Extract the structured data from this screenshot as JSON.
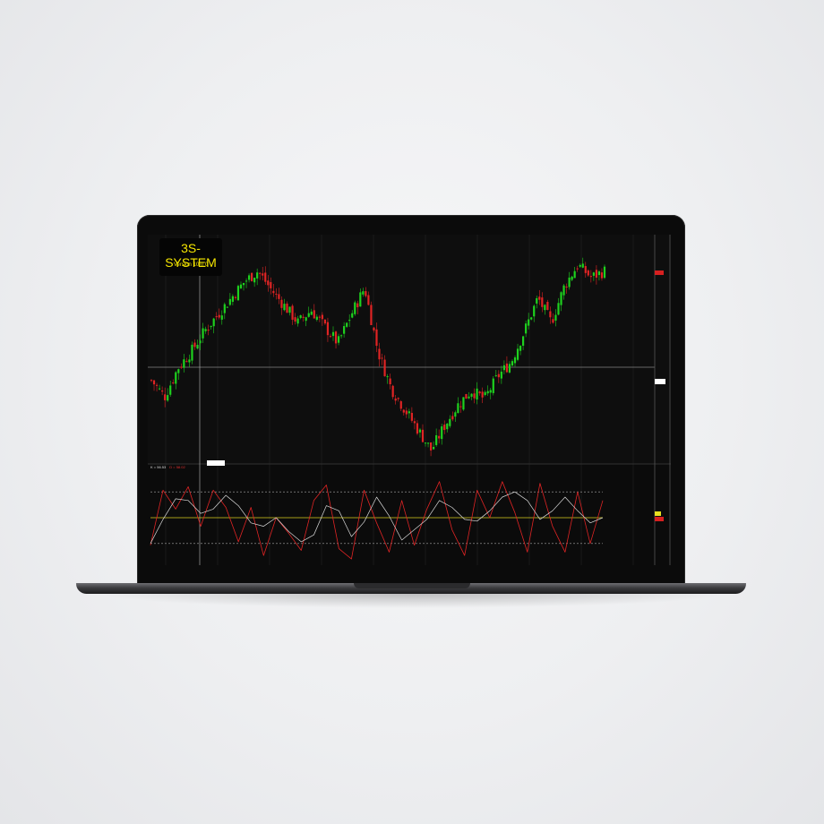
{
  "app": {
    "title": "3S-SYSTEM",
    "version": "Version 10.0.0"
  },
  "colors": {
    "up": "#1ed11e",
    "down": "#e02424",
    "k_line": "#d9d9d9",
    "d_line": "#e02424",
    "mid_line": "#d8d020",
    "band_line": "#aaaaaa"
  },
  "chart_data": [
    {
      "type": "candlestick",
      "title": "",
      "xlabel": "",
      "ylabel": "",
      "grid": true,
      "close_path": [
        0.38,
        0.3,
        0.44,
        0.52,
        0.62,
        0.7,
        0.78,
        0.86,
        0.91,
        0.82,
        0.74,
        0.66,
        0.72,
        0.64,
        0.56,
        0.7,
        0.83,
        0.52,
        0.34,
        0.24,
        0.14,
        0.04,
        0.16,
        0.26,
        0.33,
        0.29,
        0.4,
        0.47,
        0.62,
        0.78,
        0.66,
        0.84,
        0.94,
        0.88,
        0.91
      ]
    },
    {
      "type": "line",
      "series_labels": {
        "k": "K = 56.53",
        "d": "D = 58.02"
      },
      "bands": [
        80,
        50,
        20
      ],
      "series": [
        {
          "name": "K",
          "values": [
            20,
            48,
            72,
            70,
            55,
            60,
            76,
            64,
            44,
            40,
            50,
            34,
            22,
            30,
            64,
            58,
            28,
            45,
            74,
            52,
            24,
            36,
            48,
            70,
            62,
            48,
            46,
            58,
            74,
            80,
            70,
            48,
            58,
            74,
            58,
            44,
            50
          ]
        },
        {
          "name": "D",
          "values": [
            18,
            82,
            60,
            86,
            40,
            82,
            62,
            22,
            62,
            6,
            50,
            32,
            12,
            70,
            88,
            14,
            2,
            82,
            44,
            10,
            70,
            18,
            60,
            92,
            36,
            6,
            82,
            50,
            92,
            56,
            10,
            90,
            40,
            10,
            80,
            20,
            70
          ]
        }
      ]
    }
  ]
}
